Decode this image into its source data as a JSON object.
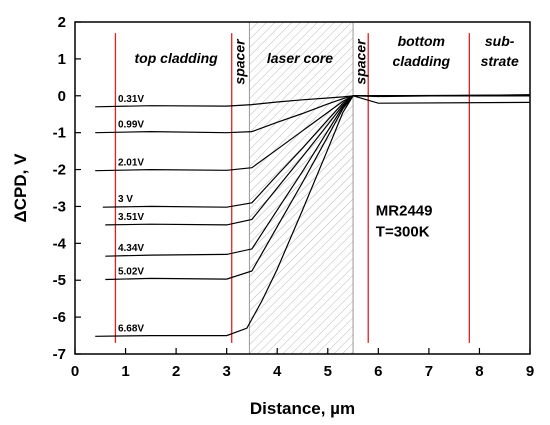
{
  "chart_data": {
    "type": "line",
    "xlabel": "Distance, µm",
    "ylabel": "ΔCPD, V",
    "xlim": [
      0,
      9
    ],
    "ylim": [
      -7,
      2
    ],
    "xticks": [
      "0",
      "1",
      "2",
      "3",
      "4",
      "5",
      "6",
      "7",
      "8",
      "9"
    ],
    "yticks": [
      "-7",
      "-6",
      "-5",
      "-4",
      "-3",
      "-2",
      "-1",
      "0",
      "1",
      "2"
    ],
    "grid": false,
    "legend": "none",
    "regions": [
      {
        "label": "top cladding",
        "x": 2.0
      },
      {
        "label": "spacer",
        "x": 3.25,
        "vertical": true
      },
      {
        "label": "laser core",
        "x": 4.45
      },
      {
        "label": "spacer",
        "x": 5.65,
        "vertical": true
      },
      {
        "label": "bottom",
        "x": 6.85
      },
      {
        "label": "cladding",
        "x": 6.85
      },
      {
        "label": "sub-",
        "x": 8.4
      },
      {
        "label": "strate",
        "x": 8.4
      }
    ],
    "boundaries": [
      0.8,
      3.1,
      5.8,
      7.8
    ],
    "core_band": [
      3.45,
      5.5
    ],
    "annotation": [
      "MR2449",
      "T=300K"
    ],
    "series": [
      {
        "label": "0.31V",
        "x": [
          0.4,
          1.5,
          3.0,
          3.5,
          4.0,
          4.5,
          5.0,
          5.3,
          5.5,
          6.0,
          9.0
        ],
        "y": [
          -0.3,
          -0.27,
          -0.28,
          -0.24,
          -0.17,
          -0.11,
          -0.06,
          -0.03,
          0.0,
          -0.02,
          0.03
        ]
      },
      {
        "label": "0.99V",
        "x": [
          0.4,
          1.5,
          3.0,
          3.5,
          4.0,
          4.5,
          5.0,
          5.3,
          5.5,
          6.0,
          9.0
        ],
        "y": [
          -1.0,
          -0.97,
          -1.0,
          -0.97,
          -0.72,
          -0.48,
          -0.22,
          -0.08,
          0.0,
          0.0,
          0.02
        ]
      },
      {
        "label": "2.01V",
        "x": [
          0.4,
          1.5,
          3.0,
          3.5,
          4.0,
          4.5,
          5.0,
          5.3,
          5.5,
          6.0,
          9.0
        ],
        "y": [
          -2.03,
          -2.0,
          -2.02,
          -1.95,
          -1.45,
          -0.95,
          -0.45,
          -0.15,
          0.0,
          0.0,
          0.0
        ]
      },
      {
        "label": "3 V",
        "x": [
          0.55,
          1.5,
          3.0,
          3.5,
          4.0,
          4.5,
          5.0,
          5.3,
          5.5,
          6.0,
          9.0
        ],
        "y": [
          -3.02,
          -3.0,
          -3.02,
          -2.9,
          -2.15,
          -1.42,
          -0.65,
          -0.2,
          0.0,
          0.0,
          0.0
        ]
      },
      {
        "label": "3.51V",
        "x": [
          0.6,
          1.5,
          3.0,
          3.5,
          4.0,
          4.5,
          5.0,
          5.3,
          5.5,
          6.0,
          9.0
        ],
        "y": [
          -3.5,
          -3.48,
          -3.5,
          -3.35,
          -2.5,
          -1.65,
          -0.78,
          -0.25,
          0.0,
          0.0,
          0.0
        ]
      },
      {
        "label": "4.34V",
        "x": [
          0.6,
          1.5,
          3.0,
          3.5,
          4.0,
          4.5,
          5.0,
          5.3,
          5.5,
          6.0,
          9.0
        ],
        "y": [
          -4.35,
          -4.32,
          -4.3,
          -4.15,
          -3.1,
          -2.05,
          -0.95,
          -0.3,
          0.0,
          0.0,
          0.0
        ]
      },
      {
        "label": "5.02V",
        "x": [
          0.6,
          1.5,
          3.0,
          3.5,
          4.0,
          4.5,
          5.0,
          5.3,
          5.5,
          6.0,
          9.0
        ],
        "y": [
          -4.98,
          -4.95,
          -4.97,
          -4.75,
          -3.55,
          -2.35,
          -1.1,
          -0.35,
          0.0,
          0.0,
          0.0
        ]
      },
      {
        "label": "6.68V",
        "x": [
          0.4,
          1.5,
          3.0,
          3.4,
          3.7,
          4.0,
          4.5,
          5.0,
          5.3,
          5.5,
          6.0,
          9.0
        ],
        "y": [
          -6.52,
          -6.5,
          -6.5,
          -6.3,
          -5.55,
          -4.7,
          -3.1,
          -1.45,
          -0.45,
          0.0,
          -0.2,
          -0.18
        ]
      }
    ]
  }
}
